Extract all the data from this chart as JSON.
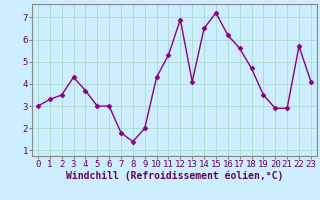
{
  "x": [
    0,
    1,
    2,
    3,
    4,
    5,
    6,
    7,
    8,
    9,
    10,
    11,
    12,
    13,
    14,
    15,
    16,
    17,
    18,
    19,
    20,
    21,
    22,
    23
  ],
  "y": [
    3.0,
    3.3,
    3.5,
    4.3,
    3.7,
    3.0,
    3.0,
    1.8,
    1.4,
    2.0,
    4.3,
    5.3,
    6.9,
    4.1,
    6.5,
    7.2,
    6.2,
    5.6,
    4.7,
    3.5,
    2.9,
    2.9,
    5.7,
    4.1
  ],
  "line_color": "#880088",
  "marker": "D",
  "marker_size": 2.5,
  "background_color": "#cceeff",
  "grid_color": "#aaddcc",
  "xlabel": "Windchill (Refroidissement éolien,°C)",
  "xlabel_fontsize": 7,
  "xlim": [
    -0.5,
    23.5
  ],
  "ylim": [
    0.75,
    7.6
  ],
  "yticks": [
    1,
    2,
    3,
    4,
    5,
    6,
    7
  ],
  "xticks": [
    0,
    1,
    2,
    3,
    4,
    5,
    6,
    7,
    8,
    9,
    10,
    11,
    12,
    13,
    14,
    15,
    16,
    17,
    18,
    19,
    20,
    21,
    22,
    23
  ],
  "tick_fontsize": 6.5,
  "linewidth": 1.0,
  "spine_color": "#888888"
}
